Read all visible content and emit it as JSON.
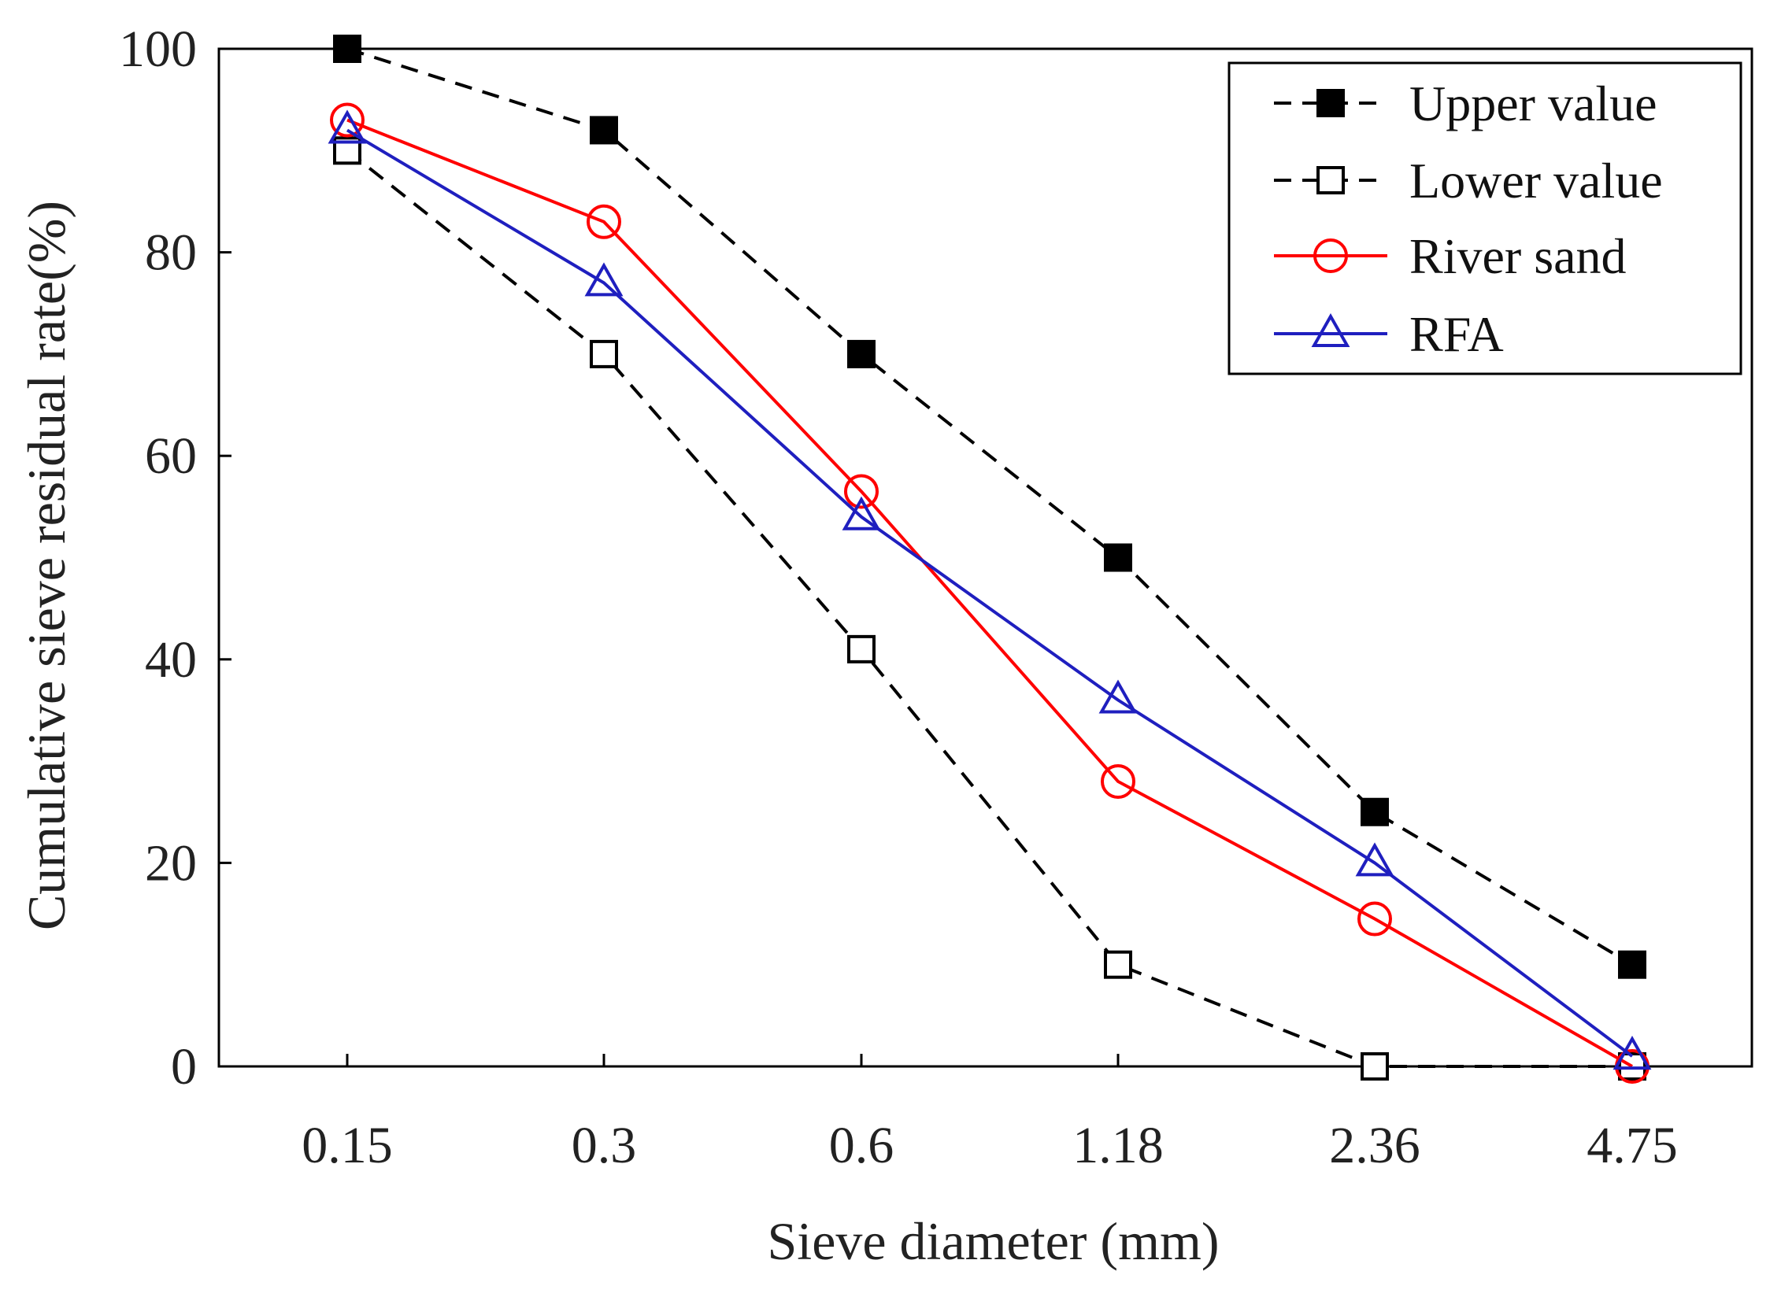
{
  "chart_data": {
    "type": "line",
    "title": "",
    "xlabel": "Sieve diameter (mm)",
    "ylabel": "Cumulative sieve residual rate(%)",
    "categories": [
      "0.15",
      "0.3",
      "0.6",
      "1.18",
      "2.36",
      "4.75"
    ],
    "ylim": [
      0,
      100
    ],
    "yticks": [
      "0",
      "20",
      "40",
      "60",
      "80",
      "100"
    ],
    "grid": false,
    "legend_position": "top-right",
    "series": [
      {
        "name": "Upper value",
        "values": [
          100,
          92,
          70,
          50,
          25,
          10
        ],
        "color": "#000000",
        "dash": true,
        "marker": "square-filled"
      },
      {
        "name": "Lower value",
        "values": [
          90,
          70,
          41,
          10,
          0,
          0
        ],
        "color": "#000000",
        "dash": true,
        "marker": "square-open"
      },
      {
        "name": "River sand",
        "values": [
          93,
          83,
          56.5,
          28,
          14.5,
          0
        ],
        "color": "#ff0000",
        "dash": false,
        "marker": "circle-open"
      },
      {
        "name": "RFA",
        "values": [
          92,
          77,
          54,
          36,
          20,
          1
        ],
        "color": "#1f1fbf",
        "dash": false,
        "marker": "triangle-open"
      }
    ]
  }
}
